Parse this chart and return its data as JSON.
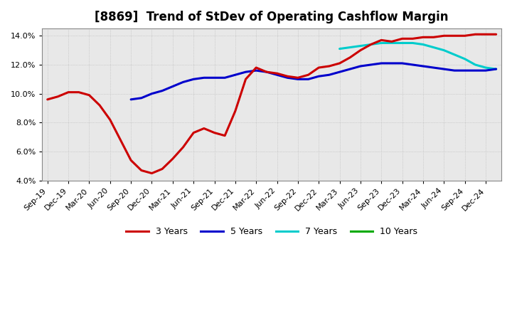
{
  "title": "[8869]  Trend of StDev of Operating Cashflow Margin",
  "ylabel": "",
  "ylim": [
    0.04,
    0.145
  ],
  "yticks": [
    0.04,
    0.06,
    0.08,
    0.1,
    0.12,
    0.14
  ],
  "ytick_labels": [
    "4.0%",
    "6.0%",
    "8.0%",
    "10.0%",
    "12.0%",
    "14.0%"
  ],
  "background_color": "#ffffff",
  "plot_bg_color": "#f0f0f0",
  "grid_color": "#cccccc",
  "series": {
    "3yr": {
      "color": "#cc0000",
      "label": "3 Years",
      "x": [
        0,
        1,
        2,
        3,
        4,
        5,
        6,
        7,
        8,
        9,
        10,
        11,
        12,
        13,
        14,
        15,
        16,
        17,
        18,
        19,
        20,
        21,
        22,
        23,
        24,
        25,
        26,
        27,
        28,
        29,
        30,
        31,
        32,
        33,
        34,
        35,
        36,
        37,
        38,
        39,
        40,
        41,
        42,
        43
      ],
      "y": [
        0.096,
        0.098,
        0.101,
        0.101,
        0.099,
        0.092,
        0.082,
        0.068,
        0.054,
        0.047,
        0.045,
        0.048,
        0.055,
        0.063,
        0.073,
        0.076,
        0.073,
        0.071,
        0.088,
        0.11,
        0.118,
        0.115,
        0.114,
        0.112,
        0.111,
        0.113,
        0.118,
        0.119,
        0.121,
        0.125,
        0.13,
        0.134,
        0.137,
        0.136,
        0.138,
        0.138,
        0.139,
        0.139,
        0.14,
        0.14,
        0.14,
        0.141,
        0.141,
        0.141
      ]
    },
    "5yr": {
      "color": "#0000cc",
      "label": "5 Years",
      "x": [
        8,
        9,
        10,
        11,
        12,
        13,
        14,
        15,
        16,
        17,
        18,
        19,
        20,
        21,
        22,
        23,
        24,
        25,
        26,
        27,
        28,
        29,
        30,
        31,
        32,
        33,
        34,
        35,
        36,
        37,
        38,
        39,
        40,
        41,
        42,
        43
      ],
      "y": [
        0.096,
        0.097,
        0.1,
        0.102,
        0.105,
        0.108,
        0.11,
        0.111,
        0.111,
        0.111,
        0.113,
        0.115,
        0.116,
        0.115,
        0.113,
        0.111,
        0.11,
        0.11,
        0.112,
        0.113,
        0.115,
        0.117,
        0.119,
        0.12,
        0.121,
        0.121,
        0.121,
        0.12,
        0.119,
        0.118,
        0.117,
        0.116,
        0.116,
        0.116,
        0.116,
        0.117
      ]
    },
    "7yr": {
      "color": "#00cccc",
      "label": "7 Years",
      "x": [
        28,
        29,
        30,
        31,
        32,
        33,
        34,
        35,
        36,
        37,
        38,
        39,
        40,
        41,
        42,
        43
      ],
      "y": [
        0.131,
        0.132,
        0.133,
        0.134,
        0.135,
        0.135,
        0.135,
        0.135,
        0.134,
        0.132,
        0.13,
        0.127,
        0.124,
        0.12,
        0.118,
        0.117
      ]
    },
    "10yr": {
      "color": "#00aa00",
      "label": "10 Years",
      "x": [],
      "y": []
    }
  },
  "x_tick_labels": [
    "Sep-19",
    "Dec-19",
    "Mar-20",
    "Jun-20",
    "Sep-20",
    "Dec-20",
    "Mar-21",
    "Jun-21",
    "Sep-21",
    "Dec-21",
    "Mar-22",
    "Jun-22",
    "Sep-22",
    "Dec-22",
    "Mar-23",
    "Jun-23",
    "Sep-23",
    "Dec-23",
    "Mar-24",
    "Jun-24",
    "Sep-24",
    "Dec-24"
  ],
  "x_tick_positions": [
    0,
    3,
    6,
    9,
    12,
    15,
    18,
    21,
    24,
    27,
    30,
    33,
    36,
    39,
    42,
    45,
    48,
    51,
    54,
    57,
    60,
    63
  ],
  "legend_colors": [
    "#cc0000",
    "#0000cc",
    "#00cccc",
    "#00aa00"
  ],
  "legend_labels": [
    "3 Years",
    "5 Years",
    "7 Years",
    "10 Years"
  ]
}
